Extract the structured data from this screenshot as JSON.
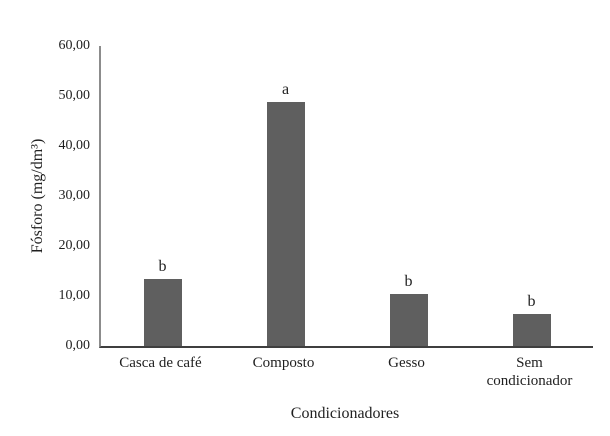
{
  "chart_data": {
    "type": "bar",
    "title": "",
    "categories": [
      "Casca de café",
      "Composto",
      "Gesso",
      "Sem condicionador"
    ],
    "values": [
      13.4,
      48.9,
      10.4,
      6.4
    ],
    "bar_labels": [
      "b",
      "a",
      "b",
      "b"
    ],
    "xlabel": "Condicionadores",
    "ylabel": "Fósforo (mg/dm³)",
    "ylim": [
      0,
      60
    ],
    "ytick_step": 10,
    "ytick_labels": [
      "0,00",
      "10,00",
      "20,00",
      "30,00",
      "40,00",
      "50,00",
      "60,00"
    ],
    "bar_color": "#5f5f5f",
    "grid": false,
    "legend": "none",
    "plot_background": "#ffffff"
  }
}
